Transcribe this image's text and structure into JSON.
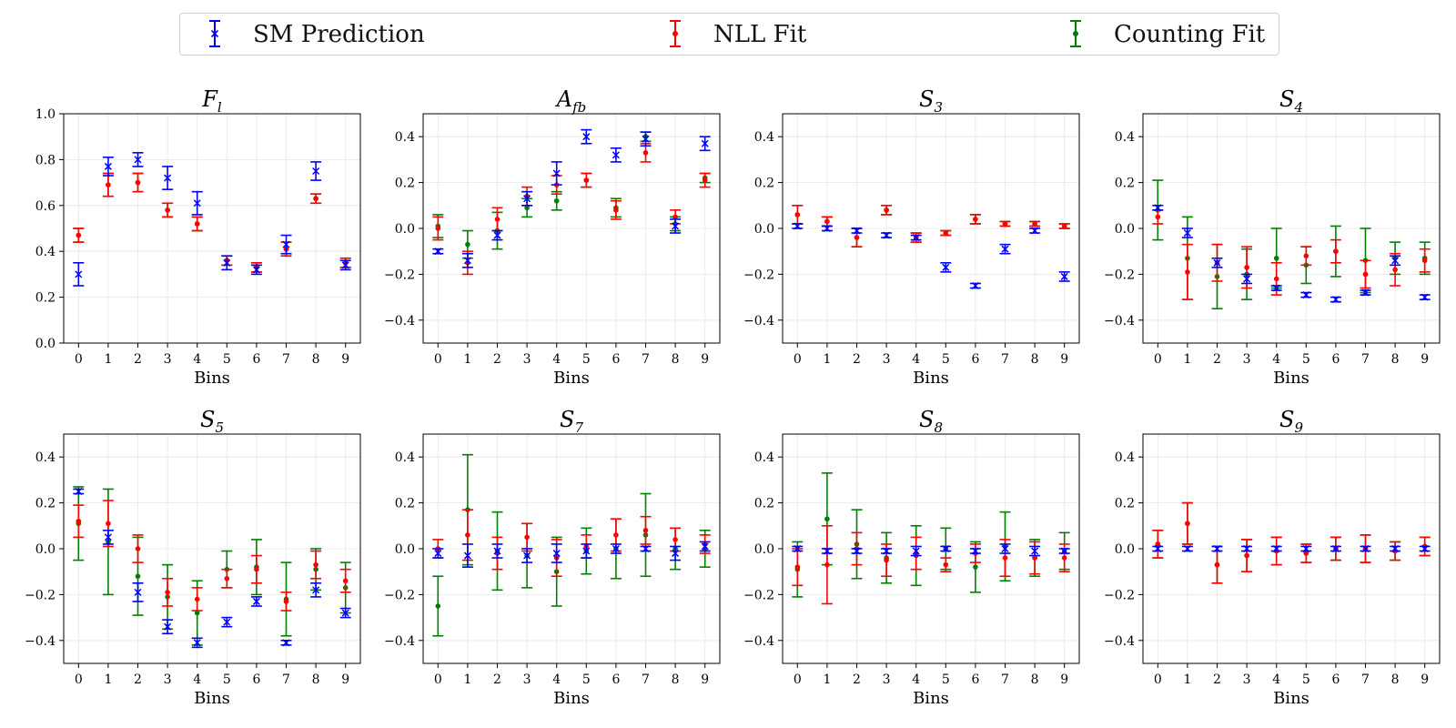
{
  "legend": {
    "items": [
      {
        "label": "SM Prediction",
        "color": "#0000ff",
        "marker": "x"
      },
      {
        "label": "NLL Fit",
        "color": "#ff0000",
        "marker": "dot"
      },
      {
        "label": "Counting Fit",
        "color": "#007f00",
        "marker": "dot"
      }
    ]
  },
  "chart_data": [
    {
      "type": "scatter",
      "title": "Fl",
      "title_main": "F",
      "title_sub": "l",
      "xlabel": "Bins",
      "ylabel": "",
      "ylim": [
        0.0,
        1.0
      ],
      "yticks": [
        "0.0",
        "0.2",
        "0.4",
        "0.6",
        "0.8",
        "1.0"
      ],
      "categories": [
        "0",
        "1",
        "2",
        "3",
        "4",
        "5",
        "6",
        "7",
        "8",
        "9"
      ],
      "series": [
        {
          "name": "SM Prediction",
          "values": [
            0.3,
            0.77,
            0.8,
            0.72,
            0.61,
            0.35,
            0.32,
            0.43,
            0.75,
            0.34
          ],
          "errors": [
            0.05,
            0.04,
            0.03,
            0.05,
            0.05,
            0.03,
            0.02,
            0.04,
            0.04,
            0.02
          ]
        },
        {
          "name": "NLL Fit",
          "values": [
            0.47,
            0.69,
            0.7,
            0.58,
            0.52,
            0.36,
            0.33,
            0.41,
            0.63,
            0.35
          ],
          "errors": [
            0.03,
            0.05,
            0.04,
            0.03,
            0.03,
            0.02,
            0.02,
            0.03,
            0.02,
            0.02
          ]
        },
        {
          "name": "Counting Fit",
          "values": [
            0.47,
            0.69,
            0.7,
            0.58,
            0.52,
            0.36,
            0.33,
            0.41,
            0.63,
            0.35
          ],
          "errors": [
            0.03,
            0.05,
            0.04,
            0.03,
            0.03,
            0.02,
            0.02,
            0.03,
            0.02,
            0.02
          ]
        }
      ]
    },
    {
      "type": "scatter",
      "title": "Afb",
      "title_main": "A",
      "title_sub": "fb",
      "xlabel": "Bins",
      "ylabel": "",
      "ylim": [
        -0.5,
        0.5
      ],
      "yticks": [
        "−0.4",
        "−0.2",
        "0.0",
        "0.2",
        "0.4"
      ],
      "categories": [
        "0",
        "1",
        "2",
        "3",
        "4",
        "5",
        "6",
        "7",
        "8",
        "9"
      ],
      "series": [
        {
          "name": "SM Prediction",
          "values": [
            -0.1,
            -0.14,
            -0.03,
            0.13,
            0.24,
            0.4,
            0.32,
            0.39,
            0.01,
            0.37
          ],
          "errors": [
            0.01,
            0.03,
            0.02,
            0.03,
            0.05,
            0.03,
            0.03,
            0.03,
            0.03,
            0.03
          ]
        },
        {
          "name": "NLL Fit",
          "values": [
            0.0,
            -0.15,
            0.04,
            0.14,
            0.19,
            0.21,
            0.08,
            0.33,
            0.05,
            0.21
          ],
          "errors": [
            0.05,
            0.05,
            0.05,
            0.04,
            0.04,
            0.03,
            0.04,
            0.04,
            0.03,
            0.03
          ]
        },
        {
          "name": "Counting Fit",
          "values": [
            0.01,
            -0.07,
            -0.01,
            0.09,
            0.12,
            0.21,
            0.09,
            0.4,
            0.02,
            0.22
          ],
          "errors": [
            0.05,
            0.06,
            0.08,
            0.04,
            0.04,
            0.03,
            0.04,
            0.02,
            0.03,
            0.02
          ]
        }
      ]
    },
    {
      "type": "scatter",
      "title": "S3",
      "title_main": "S",
      "title_sub": "3",
      "xlabel": "Bins",
      "ylabel": "",
      "ylim": [
        -0.5,
        0.5
      ],
      "yticks": [
        "−0.4",
        "−0.2",
        "0.0",
        "0.2",
        "0.4"
      ],
      "categories": [
        "0",
        "1",
        "2",
        "3",
        "4",
        "5",
        "6",
        "7",
        "8",
        "9"
      ],
      "series": [
        {
          "name": "SM Prediction",
          "values": [
            0.01,
            0.0,
            -0.01,
            -0.03,
            -0.04,
            -0.17,
            -0.25,
            -0.09,
            -0.01,
            -0.21
          ],
          "errors": [
            0.01,
            0.01,
            0.01,
            0.01,
            0.01,
            0.02,
            0.01,
            0.02,
            0.01,
            0.02
          ]
        },
        {
          "name": "NLL Fit",
          "values": [
            0.06,
            0.03,
            -0.04,
            0.08,
            -0.04,
            -0.02,
            0.04,
            0.02,
            0.02,
            0.01
          ],
          "errors": [
            0.04,
            0.02,
            0.04,
            0.02,
            0.02,
            0.01,
            0.02,
            0.01,
            0.01,
            0.01
          ]
        },
        {
          "name": "Counting Fit",
          "values": [
            0.06,
            0.03,
            -0.04,
            0.08,
            -0.04,
            -0.02,
            0.04,
            0.02,
            0.02,
            0.01
          ],
          "errors": [
            0.04,
            0.02,
            0.04,
            0.02,
            0.02,
            0.01,
            0.02,
            0.01,
            0.01,
            0.01
          ]
        }
      ]
    },
    {
      "type": "scatter",
      "title": "S4",
      "title_main": "S",
      "title_sub": "4",
      "xlabel": "Bins",
      "ylabel": "",
      "ylim": [
        -0.5,
        0.5
      ],
      "yticks": [
        "−0.4",
        "−0.2",
        "0.0",
        "0.2",
        "0.4"
      ],
      "categories": [
        "0",
        "1",
        "2",
        "3",
        "4",
        "5",
        "6",
        "7",
        "8",
        "9"
      ],
      "series": [
        {
          "name": "SM Prediction",
          "values": [
            0.09,
            -0.02,
            -0.15,
            -0.22,
            -0.26,
            -0.29,
            -0.31,
            -0.28,
            -0.14,
            -0.3
          ],
          "errors": [
            0.01,
            0.02,
            0.02,
            0.02,
            0.01,
            0.01,
            0.01,
            0.01,
            0.02,
            0.01
          ]
        },
        {
          "name": "NLL Fit",
          "values": [
            0.05,
            -0.19,
            -0.15,
            -0.17,
            -0.22,
            -0.12,
            -0.1,
            -0.2,
            -0.18,
            -0.14
          ],
          "errors": [
            0.03,
            0.12,
            0.08,
            0.09,
            0.07,
            0.04,
            0.05,
            0.06,
            0.07,
            0.05
          ]
        },
        {
          "name": "Counting Fit",
          "values": [
            0.08,
            -0.13,
            -0.21,
            -0.2,
            -0.13,
            -0.16,
            -0.1,
            -0.14,
            -0.13,
            -0.13
          ],
          "errors": [
            0.13,
            0.18,
            0.14,
            0.11,
            0.13,
            0.08,
            0.11,
            0.14,
            0.07,
            0.07
          ]
        }
      ]
    },
    {
      "type": "scatter",
      "title": "S5",
      "title_main": "S",
      "title_sub": "5",
      "xlabel": "Bins",
      "ylabel": "",
      "ylim": [
        -0.5,
        0.5
      ],
      "yticks": [
        "−0.4",
        "−0.2",
        "0.0",
        "0.2",
        "0.4"
      ],
      "categories": [
        "0",
        "1",
        "2",
        "3",
        "4",
        "5",
        "6",
        "7",
        "8",
        "9"
      ],
      "series": [
        {
          "name": "SM Prediction",
          "values": [
            0.25,
            0.05,
            -0.19,
            -0.34,
            -0.41,
            -0.32,
            -0.23,
            -0.41,
            -0.18,
            -0.28
          ],
          "errors": [
            0.01,
            0.03,
            0.04,
            0.03,
            0.02,
            0.02,
            0.02,
            0.01,
            0.03,
            0.02
          ]
        },
        {
          "name": "NLL Fit",
          "values": [
            0.12,
            0.11,
            0.0,
            -0.19,
            -0.22,
            -0.13,
            -0.09,
            -0.23,
            -0.07,
            -0.14
          ],
          "errors": [
            0.07,
            0.1,
            0.06,
            0.06,
            0.05,
            0.04,
            0.06,
            0.04,
            0.06,
            0.05
          ]
        },
        {
          "name": "Counting Fit",
          "values": [
            0.11,
            0.03,
            -0.12,
            -0.21,
            -0.28,
            -0.09,
            -0.08,
            -0.22,
            -0.09,
            -0.17
          ],
          "errors": [
            0.16,
            0.23,
            0.17,
            0.14,
            0.14,
            0.08,
            0.12,
            0.16,
            0.09,
            0.11
          ]
        }
      ]
    },
    {
      "type": "scatter",
      "title": "S7",
      "title_main": "S",
      "title_sub": "7",
      "xlabel": "Bins",
      "ylabel": "",
      "ylim": [
        -0.5,
        0.5
      ],
      "yticks": [
        "−0.4",
        "−0.2",
        "0.0",
        "0.2",
        "0.4"
      ],
      "categories": [
        "0",
        "1",
        "2",
        "3",
        "4",
        "5",
        "6",
        "7",
        "8",
        "9"
      ],
      "series": [
        {
          "name": "SM Prediction",
          "values": [
            -0.02,
            -0.03,
            -0.01,
            -0.03,
            -0.02,
            -0.01,
            0.0,
            0.0,
            -0.02,
            0.01
          ],
          "errors": [
            0.02,
            0.05,
            0.03,
            0.03,
            0.04,
            0.03,
            0.02,
            0.01,
            0.03,
            0.02
          ]
        },
        {
          "name": "NLL Fit",
          "values": [
            0.0,
            0.06,
            -0.02,
            0.05,
            -0.04,
            0.01,
            0.06,
            0.08,
            0.04,
            0.02
          ],
          "errors": [
            0.04,
            0.11,
            0.07,
            0.06,
            0.08,
            0.05,
            0.07,
            0.06,
            0.05,
            0.04
          ]
        },
        {
          "name": "Counting Fit",
          "values": [
            -0.25,
            0.17,
            -0.01,
            -0.03,
            -0.1,
            -0.01,
            0.0,
            0.06,
            0.0,
            0.0
          ],
          "errors": [
            0.13,
            0.24,
            0.17,
            0.14,
            0.15,
            0.1,
            0.13,
            0.18,
            0.09,
            0.08
          ]
        }
      ]
    },
    {
      "type": "scatter",
      "title": "S8",
      "title_main": "S",
      "title_sub": "8",
      "xlabel": "Bins",
      "ylabel": "",
      "ylim": [
        -0.5,
        0.5
      ],
      "yticks": [
        "−0.4",
        "−0.2",
        "0.0",
        "0.2",
        "0.4"
      ],
      "categories": [
        "0",
        "1",
        "2",
        "3",
        "4",
        "5",
        "6",
        "7",
        "8",
        "9"
      ],
      "series": [
        {
          "name": "SM Prediction",
          "values": [
            0.0,
            -0.01,
            -0.01,
            -0.01,
            -0.01,
            0.0,
            -0.01,
            0.0,
            -0.01,
            -0.01
          ],
          "errors": [
            0.01,
            0.01,
            0.01,
            0.01,
            0.02,
            0.01,
            0.01,
            0.02,
            0.02,
            0.01
          ]
        },
        {
          "name": "NLL Fit",
          "values": [
            -0.08,
            -0.07,
            0.0,
            -0.05,
            -0.02,
            -0.07,
            -0.02,
            -0.04,
            -0.04,
            -0.04
          ],
          "errors": [
            0.08,
            0.17,
            0.07,
            0.07,
            0.07,
            0.03,
            0.04,
            0.08,
            0.07,
            0.06
          ]
        },
        {
          "name": "Counting Fit",
          "values": [
            -0.09,
            0.13,
            0.02,
            -0.04,
            -0.03,
            0.0,
            -0.08,
            0.01,
            -0.04,
            -0.01
          ],
          "errors": [
            0.12,
            0.2,
            0.15,
            0.11,
            0.13,
            0.09,
            0.11,
            0.15,
            0.08,
            0.08
          ]
        }
      ]
    },
    {
      "type": "scatter",
      "title": "S9",
      "title_main": "S",
      "title_sub": "9",
      "xlabel": "Bins",
      "ylabel": "",
      "ylim": [
        -0.5,
        0.5
      ],
      "yticks": [
        "−0.4",
        "−0.2",
        "0.0",
        "0.2",
        "0.4"
      ],
      "categories": [
        "0",
        "1",
        "2",
        "3",
        "4",
        "5",
        "6",
        "7",
        "8",
        "9"
      ],
      "series": [
        {
          "name": "SM Prediction",
          "values": [
            0.0,
            0.0,
            0.0,
            0.0,
            0.0,
            0.0,
            0.0,
            0.0,
            0.0,
            0.0
          ],
          "errors": [
            0.01,
            0.01,
            0.01,
            0.01,
            0.01,
            0.01,
            0.01,
            0.01,
            0.01,
            0.01
          ]
        },
        {
          "name": "NLL Fit",
          "values": [
            0.02,
            0.11,
            -0.07,
            -0.03,
            -0.01,
            -0.02,
            0.0,
            0.0,
            -0.01,
            0.01
          ],
          "errors": [
            0.06,
            0.09,
            0.08,
            0.07,
            0.06,
            0.04,
            0.05,
            0.06,
            0.04,
            0.04
          ]
        },
        {
          "name": "Counting Fit",
          "values": [
            0.02,
            0.11,
            -0.07,
            -0.03,
            -0.01,
            -0.02,
            0.0,
            0.0,
            -0.01,
            0.01
          ],
          "errors": [
            0.06,
            0.09,
            0.08,
            0.07,
            0.06,
            0.04,
            0.05,
            0.06,
            0.04,
            0.04
          ]
        }
      ]
    }
  ]
}
